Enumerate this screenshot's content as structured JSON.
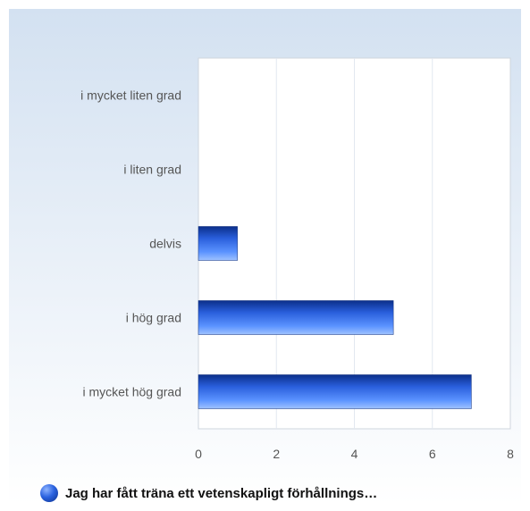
{
  "chart_data": {
    "type": "bar",
    "orientation": "horizontal",
    "categories": [
      "i mycket liten grad",
      "i liten grad",
      "delvis",
      "i hög grad",
      "i mycket hög grad"
    ],
    "series": [
      {
        "name": "Jag har fått träna ett vetenskapligt förhållnings…",
        "values": [
          0,
          0,
          1,
          5,
          7
        ]
      }
    ],
    "xlim": [
      0,
      8
    ],
    "xticks": [
      0,
      2,
      4,
      6,
      8
    ],
    "grid": true,
    "legend_position": "bottom-left",
    "colors": {
      "bar_dark": "#0b2f8a",
      "bar_mid": "#2f6bea",
      "bar_light": "#9fc2ff",
      "background_top": "#d3e1f1",
      "background_bottom": "#ffffff",
      "grid": "#e2e8f0",
      "frame": "#cfd6de",
      "tick_text": "#555555"
    }
  }
}
